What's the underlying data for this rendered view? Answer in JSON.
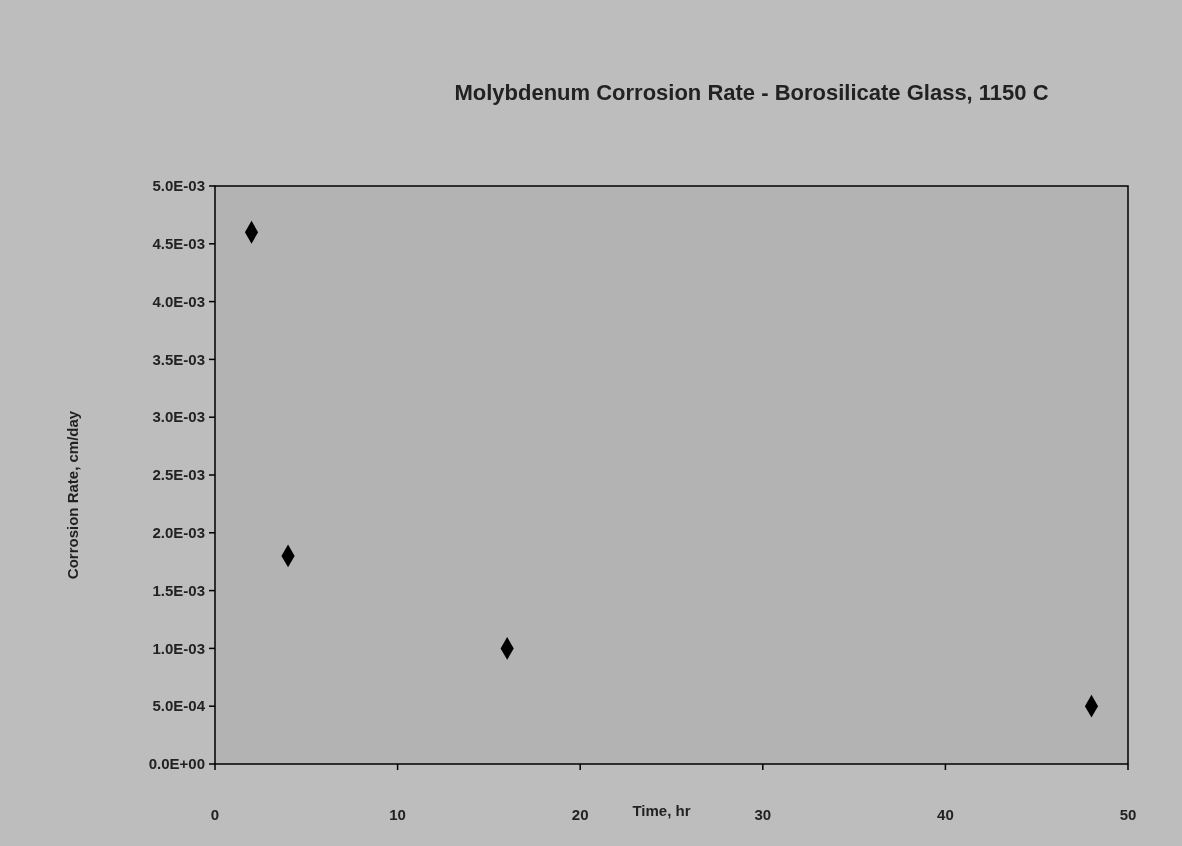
{
  "chart_data": {
    "type": "scatter",
    "title": "Molybdenum Corrosion Rate - Borosilicate Glass, 1150 C",
    "xlabel": "Time, hr",
    "ylabel": "Corrosion Rate, cm/day",
    "x": [
      2,
      4,
      16,
      48
    ],
    "series": [
      {
        "color": "#000000",
        "values": [
          0.0046,
          0.0018,
          0.001,
          0.0005
        ]
      }
    ],
    "marker": "diamond",
    "xlim": [
      0,
      50
    ],
    "xticks": [
      0,
      10,
      20,
      30,
      40,
      50
    ],
    "ylim": [
      0,
      0.005
    ],
    "yticks": [
      {
        "value": 0,
        "label": "0.0E+00"
      },
      {
        "value": 0.0005,
        "label": "5.0E-04"
      },
      {
        "value": 0.001,
        "label": "1.0E-03"
      },
      {
        "value": 0.0015,
        "label": "1.5E-03"
      },
      {
        "value": 0.002,
        "label": "2.0E-03"
      },
      {
        "value": 0.0025,
        "label": "2.5E-03"
      },
      {
        "value": 0.003,
        "label": "3.0E-03"
      },
      {
        "value": 0.0035,
        "label": "3.5E-03"
      },
      {
        "value": 0.004,
        "label": "4.0E-03"
      },
      {
        "value": 0.0045,
        "label": "4.5E-03"
      },
      {
        "value": 0.005,
        "label": "5.0E-03"
      }
    ],
    "grid": false
  }
}
